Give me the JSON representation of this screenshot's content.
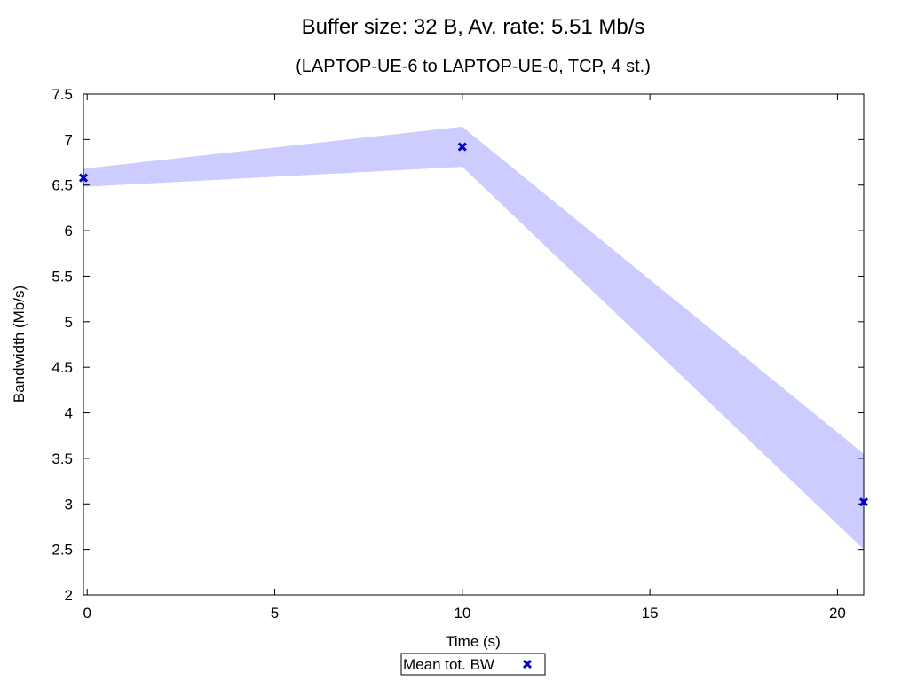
{
  "chart_data": {
    "type": "line",
    "title": "Buffer size: 32 B, Av. rate: 5.51 Mb/s",
    "subtitle": "(LAPTOP-UE-6 to LAPTOP-UE-0, TCP, 4 st.)",
    "xlabel": "Time (s)",
    "ylabel": "Bandwidth (Mb/s)",
    "xlim": [
      -0.1,
      20.7
    ],
    "ylim": [
      2,
      7.5
    ],
    "xticks": [
      "0",
      "5",
      "10",
      "15",
      "20"
    ],
    "xtick_values": [
      0,
      5,
      10,
      15,
      20
    ],
    "yticks": [
      "2",
      "2.5",
      "3",
      "3.5",
      "4",
      "4.5",
      "5",
      "5.5",
      "6",
      "6.5",
      "7",
      "7.5"
    ],
    "ytick_values": [
      2,
      2.5,
      3,
      3.5,
      4,
      4.5,
      5,
      5.5,
      6,
      6.5,
      7,
      7.5
    ],
    "grid": false,
    "legend_position": "bottom-center",
    "series": [
      {
        "name": "Mean tot. BW",
        "marker": "x",
        "color": "#0000cc",
        "x": [
          -0.1,
          10,
          20.7
        ],
        "y": [
          6.58,
          6.92,
          3.02
        ]
      }
    ],
    "band": {
      "color": "#ccccff",
      "x": [
        -0.1,
        10,
        20.7
      ],
      "lower": [
        6.48,
        6.7,
        2.5
      ],
      "upper": [
        6.68,
        7.14,
        3.55
      ]
    }
  }
}
